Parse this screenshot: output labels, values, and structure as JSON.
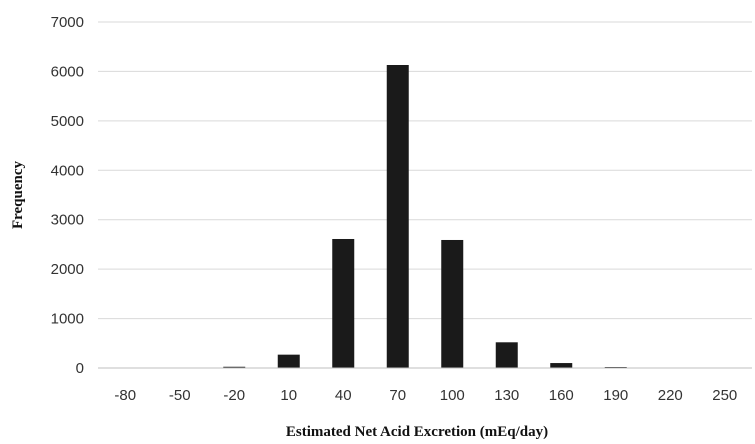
{
  "chart_data": {
    "type": "bar",
    "categories": [
      "-80",
      "-50",
      "-20",
      "10",
      "40",
      "70",
      "100",
      "130",
      "160",
      "190",
      "220",
      "250"
    ],
    "values": [
      5,
      5,
      25,
      270,
      2610,
      6130,
      2590,
      520,
      100,
      20,
      5,
      5
    ],
    "xlabel": "Estimated Net Acid Excretion (mEq/day)",
    "ylabel": "Frequency",
    "ylim": [
      0,
      7000
    ],
    "yticks": [
      0,
      1000,
      2000,
      3000,
      4000,
      5000,
      6000,
      7000
    ],
    "grid": true,
    "legend": "none",
    "bar_color": "#1a1a1a",
    "grid_color": "#d9d9d9"
  }
}
